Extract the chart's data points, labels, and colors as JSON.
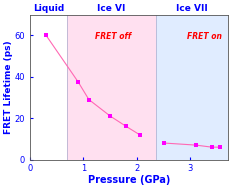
{
  "pressure": [
    0.3,
    0.9,
    1.1,
    1.5,
    1.8,
    2.05,
    2.5,
    3.1,
    3.4,
    3.55
  ],
  "lifetime": [
    60,
    37.5,
    29,
    21,
    16,
    12,
    8,
    7,
    6,
    6
  ],
  "marker_color": "#FF00FF",
  "line_color": "#FF69B4",
  "xlabel": "Pressure (GPa)",
  "ylabel": "FRET Lifetime (ps)",
  "title_liquid": "Liquid",
  "title_ice6": "Ice VI",
  "title_ice7": "Ice VII",
  "title_color": "#0000FF",
  "fret_off_color": "#FF0000",
  "fret_on_color": "#FF0000",
  "xlim": [
    0,
    3.7
  ],
  "ylim": [
    0,
    70
  ],
  "yticks": [
    0,
    20,
    40,
    60
  ],
  "xticks": [
    0,
    1,
    2,
    3
  ],
  "liquid_end": 0.7,
  "ice6_end": 2.35,
  "liquid_bg": "#FFFFFF",
  "ice6_bg": "#FFE0F0",
  "ice7_bg": "#E0ECFF",
  "boundary_color_liquid": "#0055CC",
  "boundary_color_ice6": "#CC88AA",
  "boundary_color_ice7": "#8899CC"
}
